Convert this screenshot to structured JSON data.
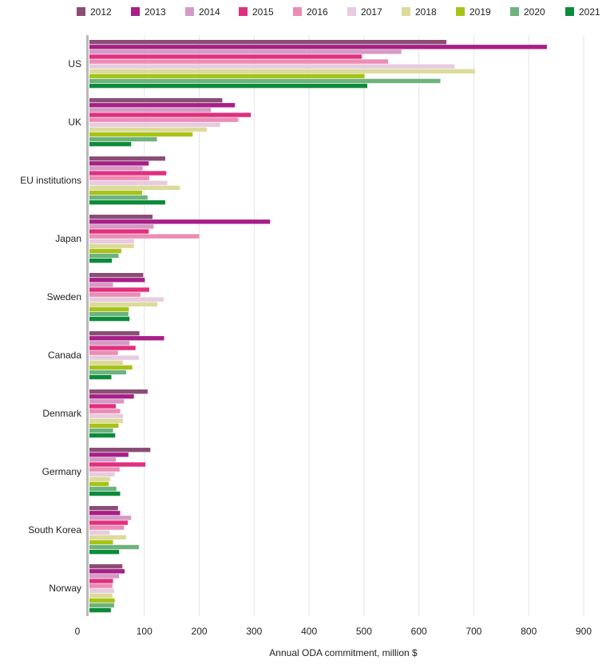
{
  "chart_data": {
    "type": "bar",
    "orientation": "horizontal",
    "xlabel": "Annual ODA commitment, million $",
    "xlim": [
      0,
      900
    ],
    "xticks": [
      0,
      100,
      200,
      300,
      400,
      500,
      600,
      700,
      800,
      900
    ],
    "grid": "vertical",
    "legend_placement": "top",
    "categories": [
      "US",
      "UK",
      "EU institutions",
      "Japan",
      "Sweden",
      "Canada",
      "Denmark",
      "Germany",
      "South Korea",
      "Norway"
    ],
    "series": [
      {
        "name": "2012",
        "color": "#8a4d75",
        "values": [
          650,
          242,
          138,
          115,
          98,
          91,
          106,
          111,
          52,
          60
        ]
      },
      {
        "name": "2013",
        "color": "#a81f88",
        "values": [
          833,
          265,
          108,
          329,
          101,
          136,
          81,
          71,
          56,
          64
        ]
      },
      {
        "name": "2014",
        "color": "#d59ac4",
        "values": [
          568,
          221,
          97,
          117,
          43,
          73,
          63,
          48,
          76,
          54
        ]
      },
      {
        "name": "2015",
        "color": "#e0307f",
        "values": [
          496,
          294,
          140,
          108,
          109,
          84,
          48,
          102,
          70,
          43
        ]
      },
      {
        "name": "2016",
        "color": "#ec8cb4",
        "values": [
          544,
          271,
          109,
          200,
          93,
          52,
          56,
          55,
          63,
          42
        ]
      },
      {
        "name": "2017",
        "color": "#e8cbe0",
        "values": [
          665,
          238,
          142,
          81,
          135,
          90,
          61,
          46,
          37,
          45
        ]
      },
      {
        "name": "2018",
        "color": "#dcdb9a",
        "values": [
          702,
          214,
          165,
          81,
          124,
          61,
          61,
          38,
          67,
          42
        ]
      },
      {
        "name": "2019",
        "color": "#a8c21a",
        "values": [
          501,
          188,
          96,
          58,
          72,
          78,
          53,
          35,
          43,
          46
        ]
      },
      {
        "name": "2020",
        "color": "#6db37c",
        "values": [
          639,
          123,
          106,
          53,
          71,
          67,
          43,
          49,
          90,
          45
        ]
      },
      {
        "name": "2021",
        "color": "#0d8b3c",
        "values": [
          506,
          76,
          138,
          41,
          73,
          40,
          47,
          56,
          54,
          39
        ]
      }
    ]
  }
}
